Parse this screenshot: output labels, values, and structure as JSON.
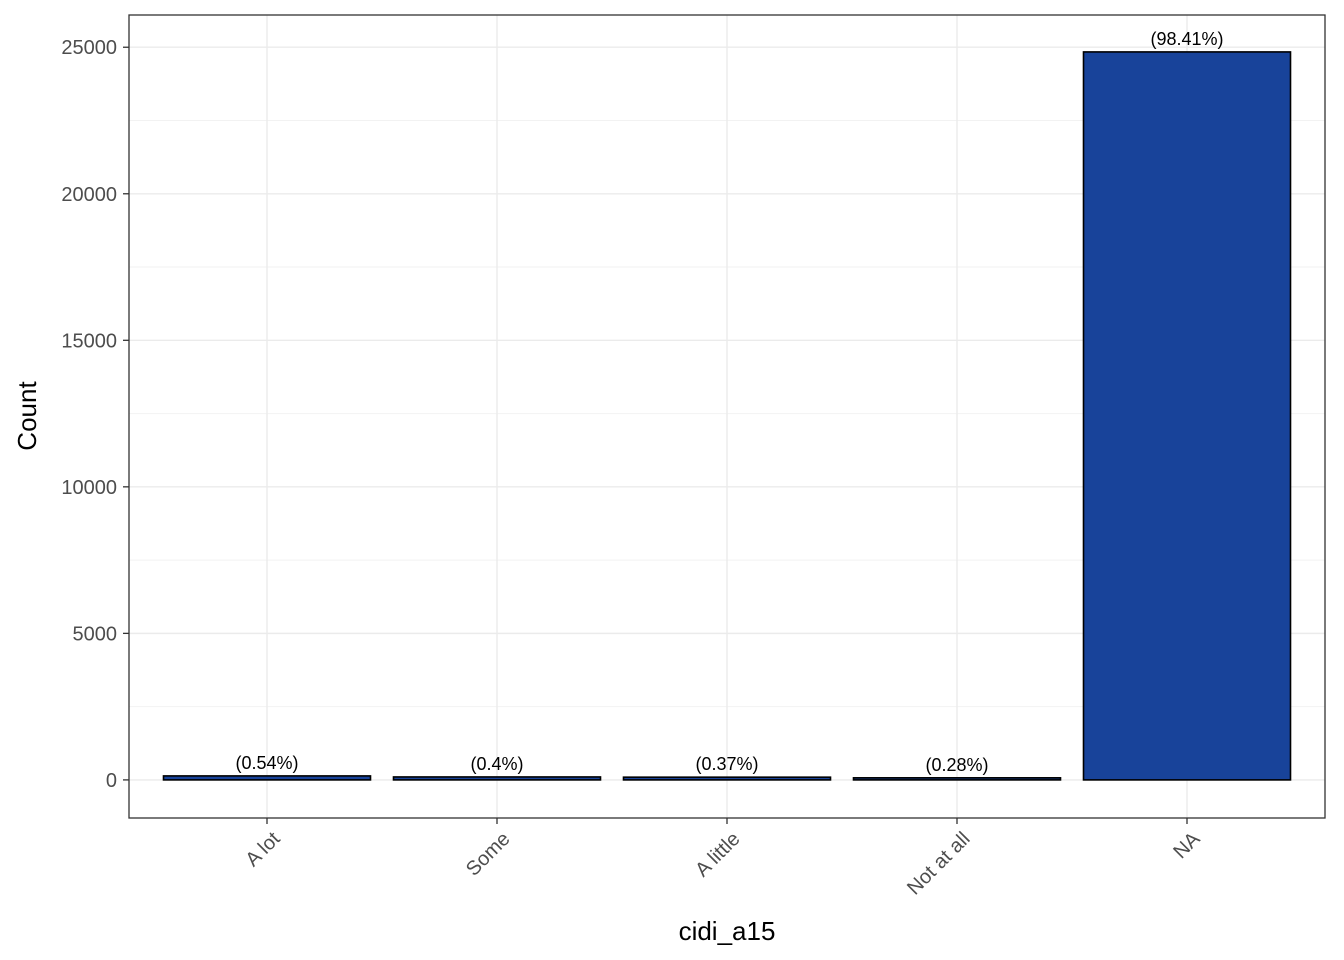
{
  "chart_data": {
    "type": "bar",
    "categories": [
      "A lot",
      "Some",
      "A little",
      "Not at all",
      "NA"
    ],
    "values": [
      136,
      101,
      93,
      71,
      24840
    ],
    "data_labels": [
      "(0.54%)",
      "(0.4%)",
      "(0.37%)",
      "(0.28%)",
      "(98.41%)"
    ],
    "title": "",
    "xlabel": "cidi_a15",
    "ylabel": "Count",
    "ylim": [
      -1300,
      26100
    ],
    "yticks": [
      0,
      5000,
      10000,
      15000,
      20000,
      25000
    ],
    "ytick_labels": [
      "0",
      "5000",
      "10000",
      "15000",
      "20000",
      "25000"
    ],
    "bar_color": "#18439A",
    "grid": true,
    "legend": "none"
  }
}
